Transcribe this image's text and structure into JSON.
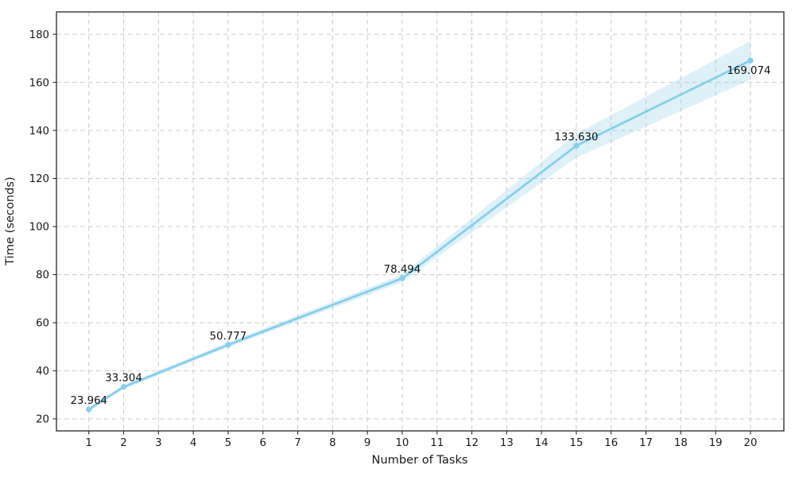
{
  "chart_data": {
    "type": "line",
    "title": "",
    "xlabel": "Number of Tasks",
    "ylabel": "Time (seconds)",
    "x": [
      1,
      2,
      5,
      10,
      15,
      20
    ],
    "series": [
      {
        "name": "time",
        "values": [
          23.964,
          33.304,
          50.777,
          78.494,
          133.63,
          169.074
        ],
        "ci_lower": [
          23.26,
          32.4,
          49.78,
          76.89,
          128.63,
          161.07
        ],
        "ci_upper": [
          24.66,
          34.2,
          51.78,
          80.09,
          138.63,
          177.2
        ]
      }
    ],
    "point_labels": [
      "23.964",
      "33.304",
      "50.777",
      "78.494",
      "133.630",
      "169.074"
    ],
    "x_ticks": [
      1,
      2,
      3,
      4,
      5,
      6,
      7,
      8,
      9,
      10,
      11,
      12,
      13,
      14,
      15,
      16,
      17,
      18,
      19,
      20
    ],
    "y_ticks": [
      20,
      40,
      60,
      80,
      100,
      120,
      140,
      160,
      180
    ],
    "xlim": [
      0.07,
      20.96
    ],
    "ylim": [
      15.0,
      189.3
    ],
    "grid": true,
    "grid_style": "dashed",
    "legend": false,
    "colors": {
      "line": "#87ceeb",
      "marker": "#87ceeb",
      "band": "#87ceeb",
      "band_opacity": "0.28",
      "grid": "#cbcbcb",
      "spine": "#262626",
      "text": "#1a1a1a"
    }
  }
}
